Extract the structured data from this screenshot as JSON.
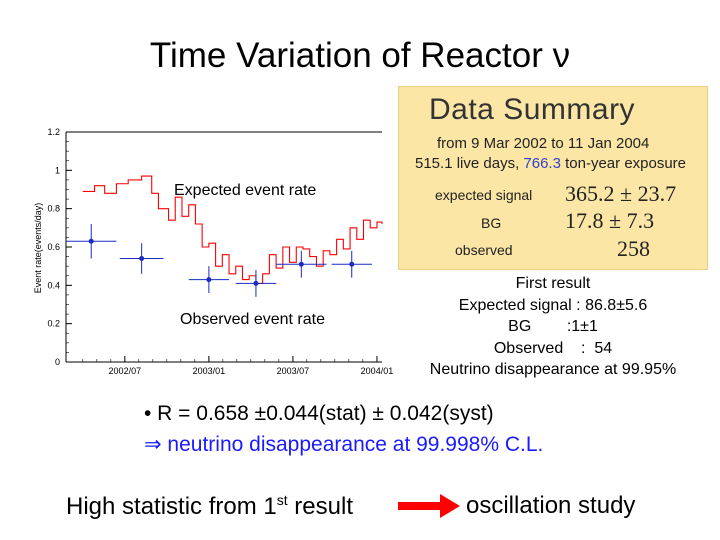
{
  "slide": {
    "title": "Time Variation of Reactor ν",
    "bullet1": "• R = 0.658 ±0.044(stat) ± 0.042(syst)",
    "bullet2": "⇒ neutrino disappearance at 99.998% C.L.",
    "bottom_left_main": "High statistic from 1",
    "bottom_left_sup": "st",
    "bottom_left_tail": " result",
    "bottom_right": "oscillation study"
  },
  "summary": {
    "heading": "Data Summary",
    "range": "from 9 Mar 2002 to 11 Jan 2004",
    "live_prefix": "515.1 live days, ",
    "live_value": "766.3",
    "live_suffix": " ton-year exposure",
    "expected_label": "expected signal",
    "expected_value": "365.2 ± 23.7",
    "bg_label": "BG",
    "bg_value": "17.8 ± 7.3",
    "observed_label": "observed",
    "observed_value": "258",
    "value_color": "#3340c8"
  },
  "first_result": {
    "title": "First result",
    "expected": "Expected signal : 86.8±5.6",
    "bg": "BG        :1±1",
    "observed": "Observed    :  54",
    "disappearance": "Neutrino disappearance at 99.95%"
  },
  "chart_data": {
    "type": "line",
    "title": "",
    "ylabel": "Event rate(events/day)",
    "xlabel": "",
    "ylim": [
      0,
      1.2
    ],
    "yticks": [
      0,
      0.2,
      0.4,
      0.6,
      0.8,
      1,
      1.2
    ],
    "xlim": [
      2002.15,
      2004.03
    ],
    "xticks": [
      {
        "value": 2002.5,
        "label": "2002/07"
      },
      {
        "value": 2003.0,
        "label": "2003/01"
      },
      {
        "value": 2003.5,
        "label": "2003/07"
      },
      {
        "value": 2004.0,
        "label": "2004/01"
      }
    ],
    "series": [
      {
        "name": "Expected event rate",
        "color": "#ff0000",
        "x": [
          2002.25,
          2002.32,
          2002.38,
          2002.45,
          2002.52,
          2002.6,
          2002.66,
          2002.7,
          2002.76,
          2002.8,
          2002.84,
          2002.88,
          2002.92,
          2002.96,
          2003.0,
          2003.04,
          2003.08,
          2003.12,
          2003.16,
          2003.2,
          2003.24,
          2003.28,
          2003.32,
          2003.36,
          2003.4,
          2003.44,
          2003.48,
          2003.52,
          2003.56,
          2003.6,
          2003.64,
          2003.68,
          2003.72,
          2003.76,
          2003.8,
          2003.84,
          2003.88,
          2003.92,
          2003.96,
          2004.0,
          2004.03
        ],
        "values": [
          0.89,
          0.92,
          0.88,
          0.93,
          0.95,
          0.97,
          0.88,
          0.8,
          0.74,
          0.86,
          0.76,
          0.82,
          0.72,
          0.6,
          0.62,
          0.5,
          0.56,
          0.46,
          0.5,
          0.43,
          0.45,
          0.41,
          0.46,
          0.56,
          0.49,
          0.6,
          0.52,
          0.6,
          0.59,
          0.55,
          0.5,
          0.58,
          0.56,
          0.64,
          0.59,
          0.7,
          0.64,
          0.74,
          0.7,
          0.73,
          0.72
        ]
      },
      {
        "name": "Observed event rate",
        "color": "#1a2bc2",
        "points": [
          {
            "x": 2002.3,
            "y": 0.63,
            "xerr": 0.15,
            "yerr": 0.09
          },
          {
            "x": 2002.6,
            "y": 0.54,
            "xerr": 0.13,
            "yerr": 0.08
          },
          {
            "x": 2003.0,
            "y": 0.43,
            "xerr": 0.12,
            "yerr": 0.07
          },
          {
            "x": 2003.28,
            "y": 0.41,
            "xerr": 0.12,
            "yerr": 0.07
          },
          {
            "x": 2003.55,
            "y": 0.51,
            "xerr": 0.15,
            "yerr": 0.07
          },
          {
            "x": 2003.85,
            "y": 0.51,
            "xerr": 0.12,
            "yerr": 0.07
          }
        ]
      }
    ],
    "annotations": [
      "Expected event rate",
      "Observed event rate"
    ]
  }
}
